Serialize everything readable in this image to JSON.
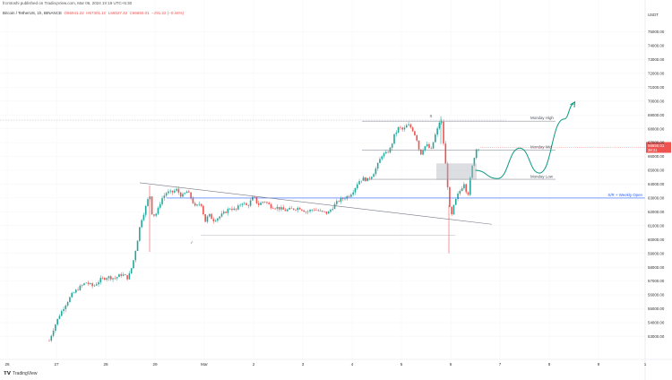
{
  "header": {
    "publisher_line": "fromtoshi published on TradingView.com, Mar 06, 2024 19:19 UTC+5:30",
    "symbol_line": "Bitcoin / TetherUS, 1h, BINANCE",
    "ohlc": {
      "o": "O66941.22",
      "h": "H67301.10",
      "l": "L66527.42",
      "c": "C66650.01",
      "chg": "−291.22 (−0.44%)"
    }
  },
  "logo": {
    "text": "TradingView",
    "icon": "tradingview-logo-icon"
  },
  "axis": {
    "currency": "USDT",
    "price_ticks": [
      "75000.00",
      "74000.00",
      "73000.00",
      "72000.00",
      "71000.00",
      "70000.00",
      "69000.00",
      "68000.00",
      "67000.00",
      "66000.00",
      "65000.00",
      "64000.00",
      "63000.00",
      "62000.00",
      "61000.00",
      "60000.00",
      "59000.00",
      "58000.00",
      "57000.00",
      "56000.00",
      "55000.00",
      "54000.00",
      "53000.00"
    ],
    "time_ticks": [
      "26",
      "27",
      "28",
      "29",
      "Mar",
      "2",
      "3",
      "4",
      "5",
      "6",
      "7",
      "8",
      "9",
      "1"
    ]
  },
  "price_label": {
    "value": "66650.01",
    "countdown": "38:21",
    "color": "#ef5350"
  },
  "colors": {
    "up": "#26a69a",
    "down": "#ef5350",
    "support_line": "#2962ff",
    "projection": "#089981",
    "zone": "#b2b5be"
  },
  "annotations": {
    "monday_high": "Monday High",
    "monday_mid": "Monday Mid",
    "monday_low": "Monday Low",
    "weekly_open": "S/R + Weekly Open",
    "top_marker": "X",
    "check_marker": "✓"
  },
  "chart_data": {
    "type": "candlestick",
    "timeframe": "1h",
    "y_range": [
      52500,
      75800
    ],
    "levels": [
      {
        "name": "Monday High",
        "price": 68550
      },
      {
        "name": "Monday Mid",
        "price": 66450
      },
      {
        "name": "Monday Low",
        "price": 64350
      },
      {
        "name": "S/R + Weekly Open",
        "price": 63000
      }
    ],
    "trendline": {
      "from": {
        "day": "28.7",
        "price": 64100
      },
      "to": {
        "day": "6.9",
        "price": 61100
      }
    },
    "projected_path": [
      {
        "day": "6.5",
        "price": 65000
      },
      {
        "day": "6.95",
        "price": 64400
      },
      {
        "day": "7.4",
        "price": 66600
      },
      {
        "day": "7.8",
        "price": 64800
      },
      {
        "day": "8.3",
        "price": 68700
      },
      {
        "day": "8.5",
        "price": 69800
      }
    ]
  }
}
